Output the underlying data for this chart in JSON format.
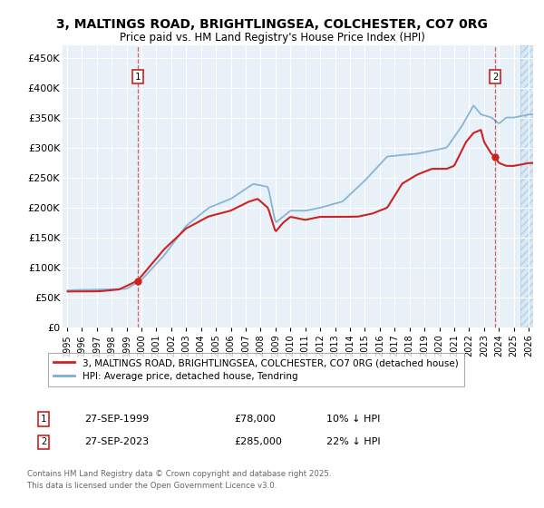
{
  "title_line1": "3, MALTINGS ROAD, BRIGHTLINGSEA, COLCHESTER, CO7 0RG",
  "title_line2": "Price paid vs. HM Land Registry's House Price Index (HPI)",
  "ylim": [
    0,
    470000
  ],
  "yticks": [
    0,
    50000,
    100000,
    150000,
    200000,
    250000,
    300000,
    350000,
    400000,
    450000
  ],
  "ytick_labels": [
    "£0",
    "£50K",
    "£100K",
    "£150K",
    "£200K",
    "£250K",
    "£300K",
    "£350K",
    "£400K",
    "£450K"
  ],
  "legend_line1": "3, MALTINGS ROAD, BRIGHTLINGSEA, COLCHESTER, CO7 0RG (detached house)",
  "legend_line2": "HPI: Average price, detached house, Tendring",
  "annotation1_date": "27-SEP-1999",
  "annotation1_price": "£78,000",
  "annotation1_note": "10% ↓ HPI",
  "annotation2_date": "27-SEP-2023",
  "annotation2_price": "£285,000",
  "annotation2_note": "22% ↓ HPI",
  "footer": "Contains HM Land Registry data © Crown copyright and database right 2025.\nThis data is licensed under the Open Government Licence v3.0.",
  "red_line_color": "#cc2222",
  "blue_line_color": "#7bafd4",
  "plot_bg": "#e8f0f8",
  "grid_color": "#ffffff",
  "marker1_x": 1999.75,
  "marker1_y": 78000,
  "marker2_x": 2023.75,
  "marker2_y": 285000,
  "xlim_left": 1994.7,
  "xlim_right": 2026.3
}
